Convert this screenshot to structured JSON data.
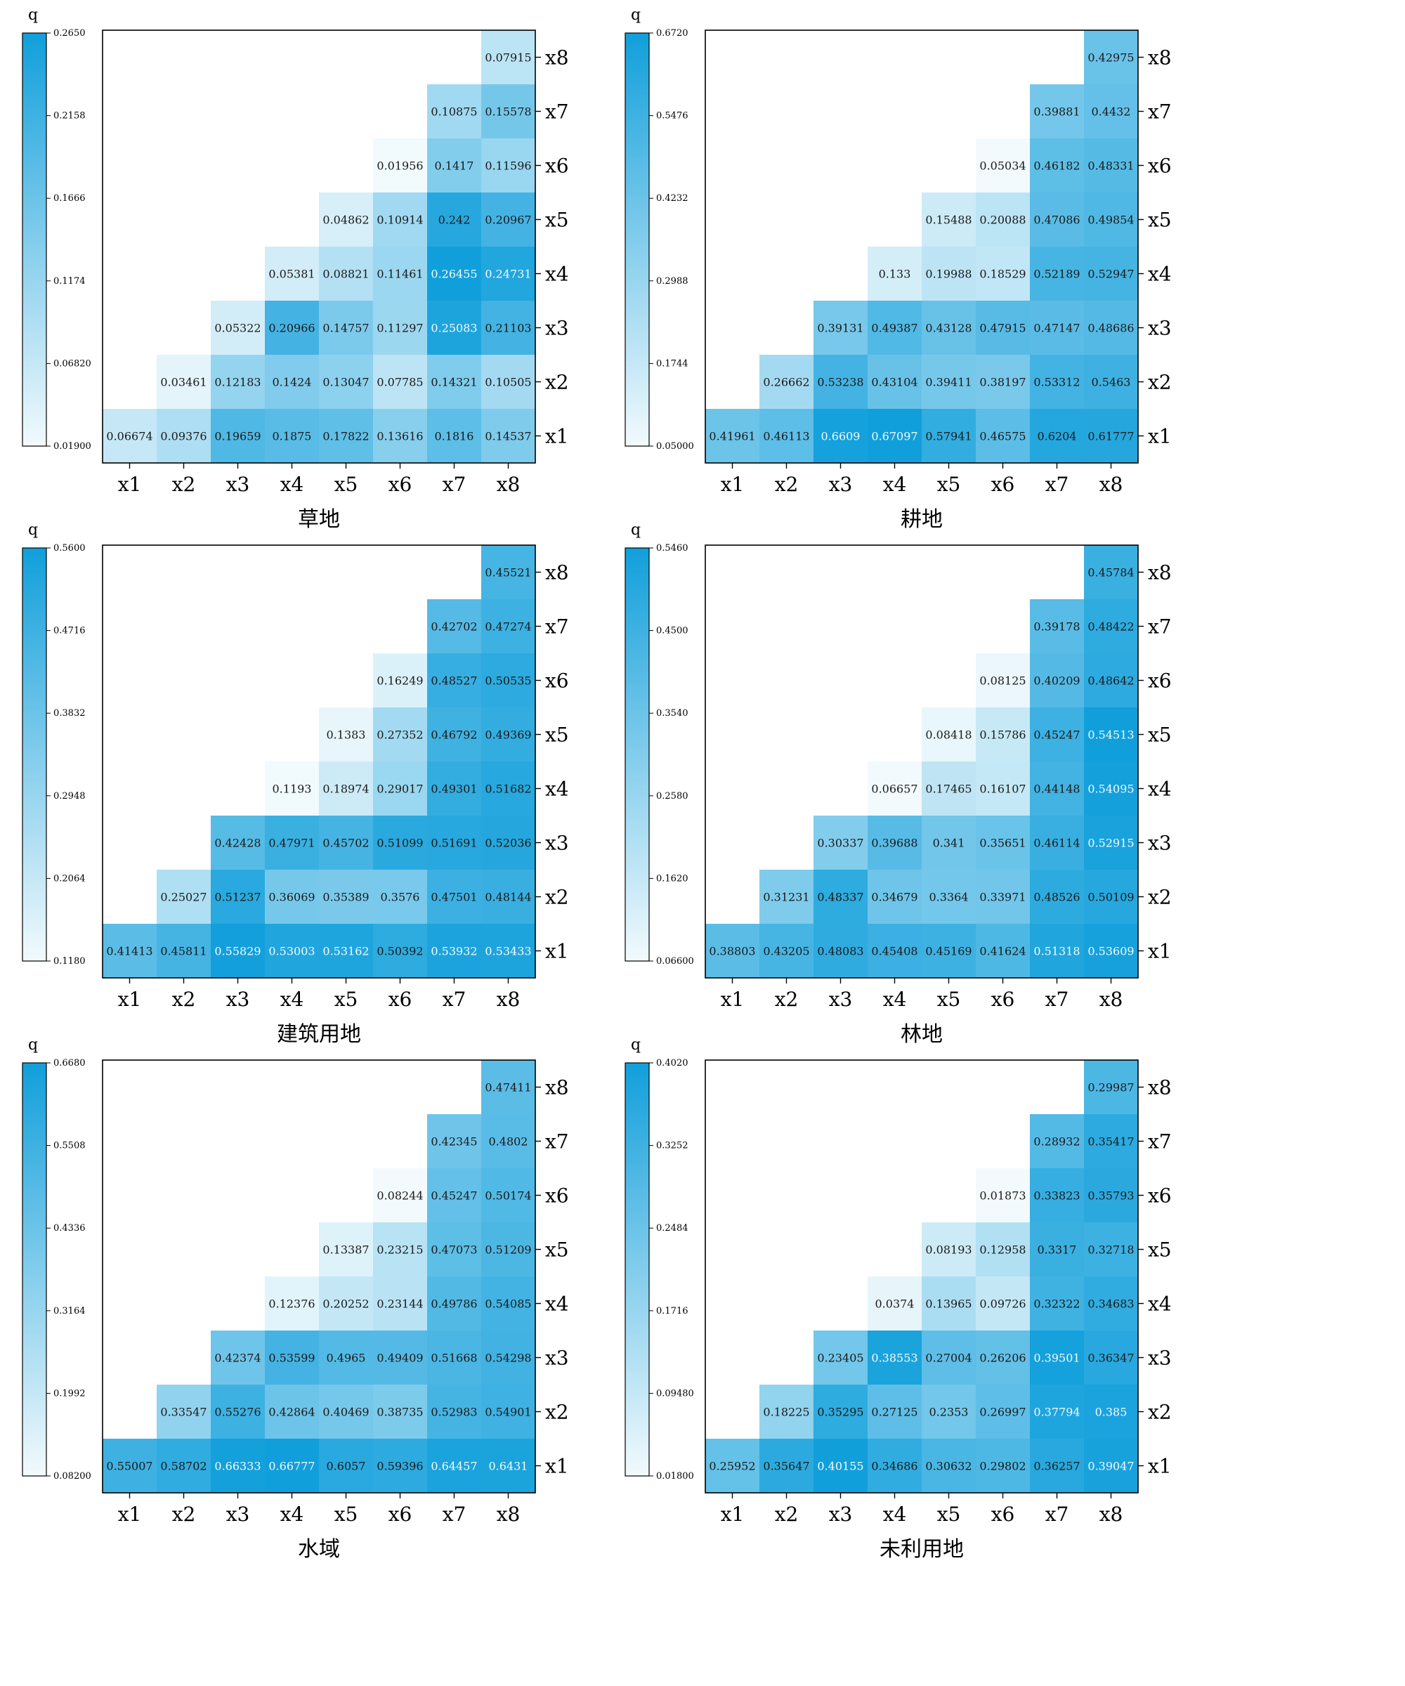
{
  "chart_data": [
    {
      "type": "heatmap",
      "title": "",
      "xlabel": "草地",
      "colorbar_label": "q",
      "x_categories": [
        "x1",
        "x2",
        "x3",
        "x4",
        "x5",
        "x6",
        "x7",
        "x8"
      ],
      "y_categories": [
        "x1",
        "x2",
        "x3",
        "x4",
        "x5",
        "x6",
        "x7",
        "x8"
      ],
      "colorbar_range": [
        0.019,
        0.265
      ],
      "colorbar_ticks": [
        "0.2650",
        "0.2158",
        "0.1666",
        "0.1174",
        "0.06820",
        "0.01900"
      ],
      "values": [
        [
          "0.06674",
          "0.09376",
          "0.19659",
          "0.1875",
          "0.17822",
          "0.13616",
          "0.1816",
          "0.14537"
        ],
        [
          "",
          "0.03461",
          "0.12183",
          "0.1424",
          "0.13047",
          "0.07785",
          "0.14321",
          "0.10505"
        ],
        [
          "",
          "",
          "0.05322",
          "0.20966",
          "0.14757",
          "0.11297",
          "0.25083",
          "0.21103"
        ],
        [
          "",
          "",
          "",
          "0.05381",
          "0.08821",
          "0.11461",
          "0.26455",
          "0.24731"
        ],
        [
          "",
          "",
          "",
          "",
          "0.04862",
          "0.10914",
          "0.242",
          "0.20967"
        ],
        [
          "",
          "",
          "",
          "",
          "",
          "0.01956",
          "0.1417",
          "0.11596"
        ],
        [
          "",
          "",
          "",
          "",
          "",
          "",
          "0.10875",
          "0.15578"
        ],
        [
          "",
          "",
          "",
          "",
          "",
          "",
          "",
          "0.07915"
        ]
      ]
    },
    {
      "type": "heatmap",
      "title": "",
      "xlabel": "耕地",
      "colorbar_label": "q",
      "x_categories": [
        "x1",
        "x2",
        "x3",
        "x4",
        "x5",
        "x6",
        "x7",
        "x8"
      ],
      "y_categories": [
        "x1",
        "x2",
        "x3",
        "x4",
        "x5",
        "x6",
        "x7",
        "x8"
      ],
      "colorbar_range": [
        0.05,
        0.672
      ],
      "colorbar_ticks": [
        "0.6720",
        "0.5476",
        "0.4232",
        "0.2988",
        "0.1744",
        "0.05000"
      ],
      "values": [
        [
          "0.41961",
          "0.46113",
          "0.6609",
          "0.67097",
          "0.57941",
          "0.46575",
          "0.6204",
          "0.61777"
        ],
        [
          "",
          "0.26662",
          "0.53238",
          "0.43104",
          "0.39411",
          "0.38197",
          "0.53312",
          "0.5463"
        ],
        [
          "",
          "",
          "0.39131",
          "0.49387",
          "0.43128",
          "0.47915",
          "0.47147",
          "0.48686"
        ],
        [
          "",
          "",
          "",
          "0.133",
          "0.19988",
          "0.18529",
          "0.52189",
          "0.52947"
        ],
        [
          "",
          "",
          "",
          "",
          "0.15488",
          "0.20088",
          "0.47086",
          "0.49854"
        ],
        [
          "",
          "",
          "",
          "",
          "",
          "0.05034",
          "0.46182",
          "0.48331"
        ],
        [
          "",
          "",
          "",
          "",
          "",
          "",
          "0.39881",
          "0.4432"
        ],
        [
          "",
          "",
          "",
          "",
          "",
          "",
          "",
          "0.42975"
        ]
      ]
    },
    {
      "type": "heatmap",
      "title": "",
      "xlabel": "建筑用地",
      "colorbar_label": "q",
      "x_categories": [
        "x1",
        "x2",
        "x3",
        "x4",
        "x5",
        "x6",
        "x7",
        "x8"
      ],
      "y_categories": [
        "x1",
        "x2",
        "x3",
        "x4",
        "x5",
        "x6",
        "x7",
        "x8"
      ],
      "colorbar_range": [
        0.118,
        0.56
      ],
      "colorbar_ticks": [
        "0.5600",
        "0.4716",
        "0.3832",
        "0.2948",
        "0.2064",
        "0.1180"
      ],
      "values": [
        [
          "0.41413",
          "0.45811",
          "0.55829",
          "0.53003",
          "0.53162",
          "0.50392",
          "0.53932",
          "0.53433"
        ],
        [
          "",
          "0.25027",
          "0.51237",
          "0.36069",
          "0.35389",
          "0.3576",
          "0.47501",
          "0.48144"
        ],
        [
          "",
          "",
          "0.42428",
          "0.47971",
          "0.45702",
          "0.51099",
          "0.51691",
          "0.52036"
        ],
        [
          "",
          "",
          "",
          "0.1193",
          "0.18974",
          "0.29017",
          "0.49301",
          "0.51682"
        ],
        [
          "",
          "",
          "",
          "",
          "0.1383",
          "0.27352",
          "0.46792",
          "0.49369"
        ],
        [
          "",
          "",
          "",
          "",
          "",
          "0.16249",
          "0.48527",
          "0.50535"
        ],
        [
          "",
          "",
          "",
          "",
          "",
          "",
          "0.42702",
          "0.47274"
        ],
        [
          "",
          "",
          "",
          "",
          "",
          "",
          "",
          "0.45521"
        ]
      ]
    },
    {
      "type": "heatmap",
      "title": "",
      "xlabel": "林地",
      "colorbar_label": "q",
      "x_categories": [
        "x1",
        "x2",
        "x3",
        "x4",
        "x5",
        "x6",
        "x7",
        "x8"
      ],
      "y_categories": [
        "x1",
        "x2",
        "x3",
        "x4",
        "x5",
        "x6",
        "x7",
        "x8"
      ],
      "colorbar_range": [
        0.066,
        0.546
      ],
      "colorbar_ticks": [
        "0.5460",
        "0.4500",
        "0.3540",
        "0.2580",
        "0.1620",
        "0.06600"
      ],
      "values": [
        [
          "0.38803",
          "0.43205",
          "0.48083",
          "0.45408",
          "0.45169",
          "0.41624",
          "0.51318",
          "0.53609"
        ],
        [
          "",
          "0.31231",
          "0.48337",
          "0.34679",
          "0.3364",
          "0.33971",
          "0.48526",
          "0.50109"
        ],
        [
          "",
          "",
          "0.30337",
          "0.39688",
          "0.341",
          "0.35651",
          "0.46114",
          "0.52915"
        ],
        [
          "",
          "",
          "",
          "0.06657",
          "0.17465",
          "0.16107",
          "0.44148",
          "0.54095"
        ],
        [
          "",
          "",
          "",
          "",
          "0.08418",
          "0.15786",
          "0.45247",
          "0.54513"
        ],
        [
          "",
          "",
          "",
          "",
          "",
          "0.08125",
          "0.40209",
          "0.48642"
        ],
        [
          "",
          "",
          "",
          "",
          "",
          "",
          "0.39178",
          "0.48422"
        ],
        [
          "",
          "",
          "",
          "",
          "",
          "",
          "",
          "0.45784"
        ]
      ]
    },
    {
      "type": "heatmap",
      "title": "",
      "xlabel": "水域",
      "colorbar_label": "q",
      "x_categories": [
        "x1",
        "x2",
        "x3",
        "x4",
        "x5",
        "x6",
        "x7",
        "x8"
      ],
      "y_categories": [
        "x1",
        "x2",
        "x3",
        "x4",
        "x5",
        "x6",
        "x7",
        "x8"
      ],
      "colorbar_range": [
        0.082,
        0.668
      ],
      "colorbar_ticks": [
        "0.6680",
        "0.5508",
        "0.4336",
        "0.3164",
        "0.1992",
        "0.08200"
      ],
      "values": [
        [
          "0.55007",
          "0.58702",
          "0.66333",
          "0.66777",
          "0.6057",
          "0.59396",
          "0.64457",
          "0.6431"
        ],
        [
          "",
          "0.33547",
          "0.55276",
          "0.42864",
          "0.40469",
          "0.38735",
          "0.52983",
          "0.54901"
        ],
        [
          "",
          "",
          "0.42374",
          "0.53599",
          "0.4965",
          "0.49409",
          "0.51668",
          "0.54298"
        ],
        [
          "",
          "",
          "",
          "0.12376",
          "0.20252",
          "0.23144",
          "0.49786",
          "0.54085"
        ],
        [
          "",
          "",
          "",
          "",
          "0.13387",
          "0.23215",
          "0.47073",
          "0.51209"
        ],
        [
          "",
          "",
          "",
          "",
          "",
          "0.08244",
          "0.45247",
          "0.50174"
        ],
        [
          "",
          "",
          "",
          "",
          "",
          "",
          "0.42345",
          "0.4802"
        ],
        [
          "",
          "",
          "",
          "",
          "",
          "",
          "",
          "0.47411"
        ]
      ]
    },
    {
      "type": "heatmap",
      "title": "",
      "xlabel": "未利用地",
      "colorbar_label": "q",
      "x_categories": [
        "x1",
        "x2",
        "x3",
        "x4",
        "x5",
        "x6",
        "x7",
        "x8"
      ],
      "y_categories": [
        "x1",
        "x2",
        "x3",
        "x4",
        "x5",
        "x6",
        "x7",
        "x8"
      ],
      "colorbar_range": [
        0.018,
        0.402
      ],
      "colorbar_ticks": [
        "0.4020",
        "0.3252",
        "0.2484",
        "0.1716",
        "0.09480",
        "0.01800"
      ],
      "values": [
        [
          "0.25952",
          "0.35647",
          "0.40155",
          "0.34686",
          "0.30632",
          "0.29802",
          "0.36257",
          "0.39047"
        ],
        [
          "",
          "0.18225",
          "0.35295",
          "0.27125",
          "0.2353",
          "0.26997",
          "0.37794",
          "0.385"
        ],
        [
          "",
          "",
          "0.23405",
          "0.38553",
          "0.27004",
          "0.26206",
          "0.39501",
          "0.36347"
        ],
        [
          "",
          "",
          "",
          "0.0374",
          "0.13965",
          "0.09726",
          "0.32322",
          "0.34683"
        ],
        [
          "",
          "",
          "",
          "",
          "0.08193",
          "0.12958",
          "0.3317",
          "0.32718"
        ],
        [
          "",
          "",
          "",
          "",
          "",
          "0.01873",
          "0.33823",
          "0.35793"
        ],
        [
          "",
          "",
          "",
          "",
          "",
          "",
          "0.28932",
          "0.35417"
        ],
        [
          "",
          "",
          "",
          "",
          "",
          "",
          "",
          "0.29987"
        ]
      ]
    }
  ],
  "colors": {
    "low": "#f2fafd",
    "high": "#119fdb",
    "axis": "#000000",
    "light_text": "#f4f9fc"
  }
}
